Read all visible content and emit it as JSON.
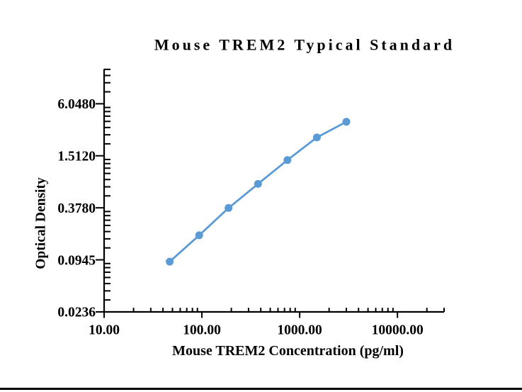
{
  "figure": {
    "background": "#ffffff",
    "bottom_rule_color": "#000000"
  },
  "chart_data": {
    "type": "line",
    "title": "Mouse TREM2 Typical Standard",
    "xlabel": "Mouse TREM2 Concentration (pg/ml)",
    "ylabel": "Optical Density",
    "x_scale": "log",
    "y_scale": "log",
    "x_range": [
      10,
      30000
    ],
    "y_range": [
      0.0236,
      14.8
    ],
    "grid": false,
    "legend": false,
    "axis_color": "#000000",
    "text_color": "#000000",
    "x_ticks": [
      {
        "value": 10,
        "label": "10.00"
      },
      {
        "value": 100,
        "label": "100.00"
      },
      {
        "value": 1000,
        "label": "1000.00"
      },
      {
        "value": 10000,
        "label": "10000.00"
      }
    ],
    "y_ticks": [
      {
        "value": 0.0236,
        "label": "0.0236"
      },
      {
        "value": 0.0945,
        "label": "0.0945"
      },
      {
        "value": 0.378,
        "label": "0.3780"
      },
      {
        "value": 1.512,
        "label": "1.5120"
      },
      {
        "value": 6.048,
        "label": "6.0480"
      }
    ],
    "series": [
      {
        "name": "Typical Standard",
        "color": "#5B9BD5",
        "marker": "circle",
        "x": [
          46.88,
          93.75,
          187.5,
          375,
          750,
          1500,
          3000
        ],
        "y": [
          0.09,
          0.182,
          0.376,
          0.715,
          1.35,
          2.465,
          3.74
        ]
      }
    ]
  }
}
